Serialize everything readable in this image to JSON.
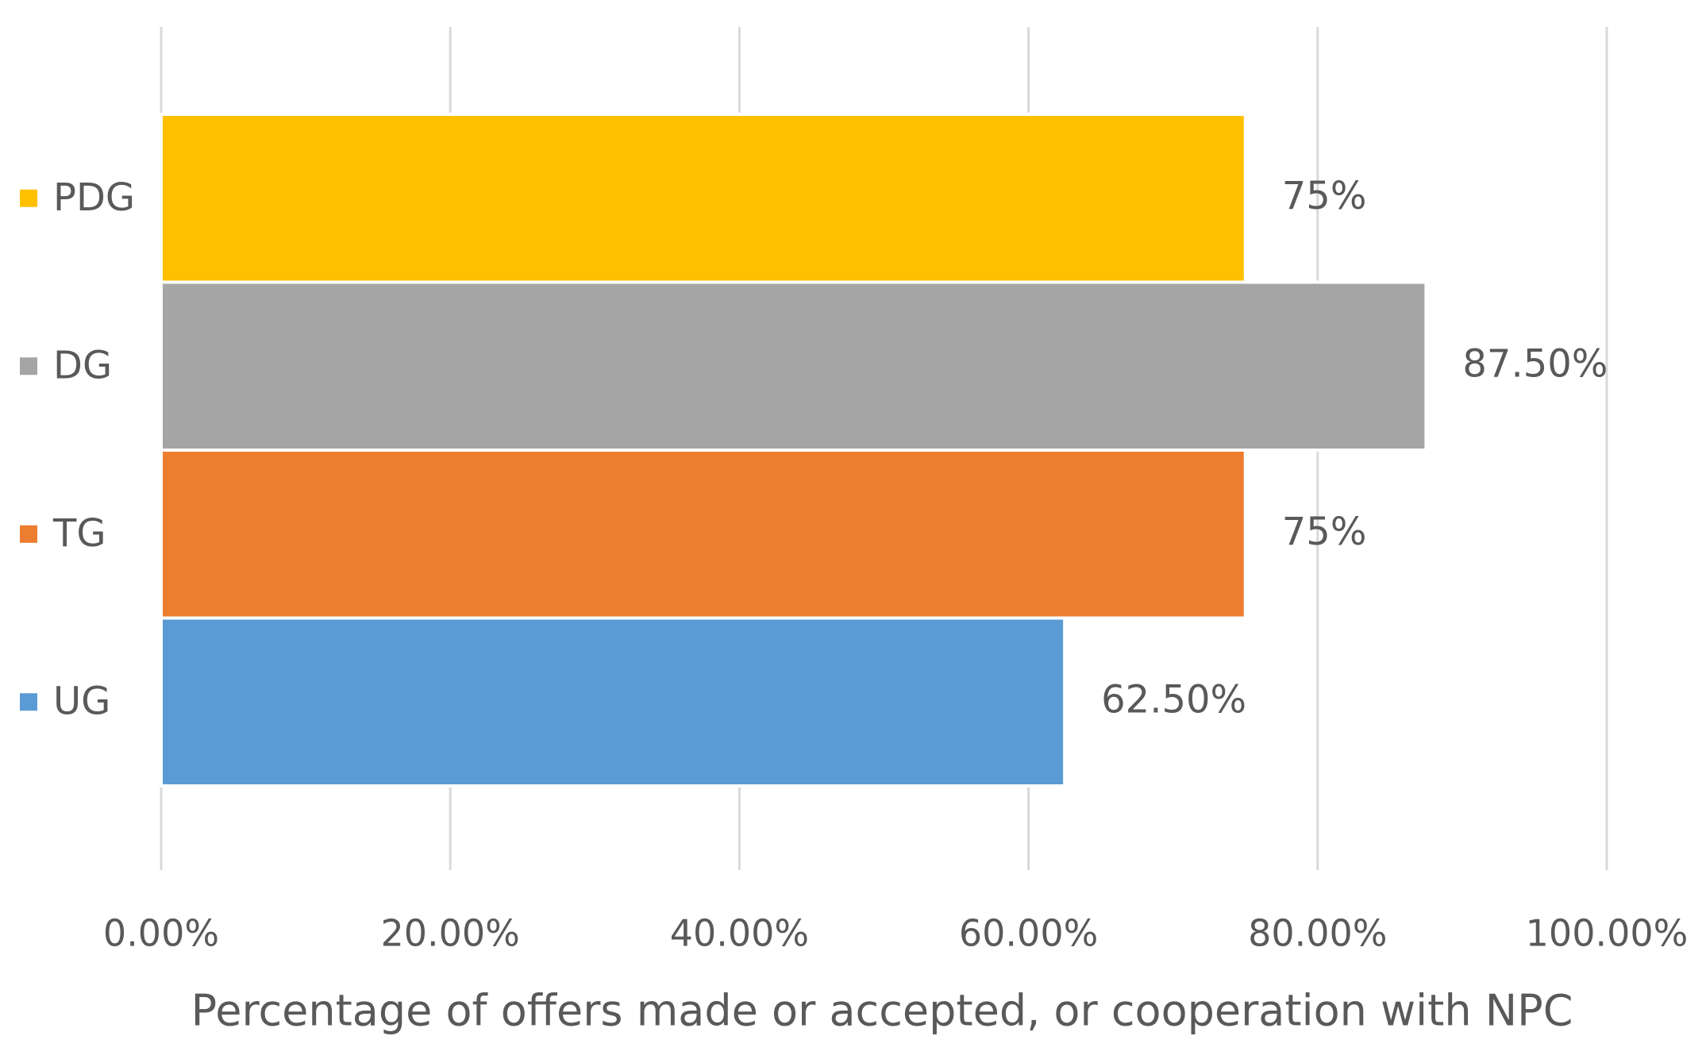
{
  "chart_data": {
    "type": "bar",
    "orientation": "horizontal",
    "categories": [
      "UG",
      "TG",
      "DG",
      "PDG"
    ],
    "values": [
      62.5,
      75,
      87.5,
      75
    ],
    "value_labels": [
      "62.50%",
      "75%",
      "87.50%",
      "75%"
    ],
    "colors": [
      "#5b9bd5",
      "#ed7d31",
      "#a5a5a5",
      "#ffc000"
    ],
    "x_label": "Percentage of offers made or accepted, or cooperation with NPC",
    "xlim": [
      0,
      100
    ],
    "xticks": [
      {
        "value": 0,
        "label": "0.00%"
      },
      {
        "value": 20,
        "label": "20.00%"
      },
      {
        "value": 40,
        "label": "40.00%"
      },
      {
        "value": 60,
        "label": "60.00%"
      },
      {
        "value": 80,
        "label": "80.00%"
      },
      {
        "value": 100,
        "label": "100.00%"
      }
    ],
    "grid": true
  }
}
